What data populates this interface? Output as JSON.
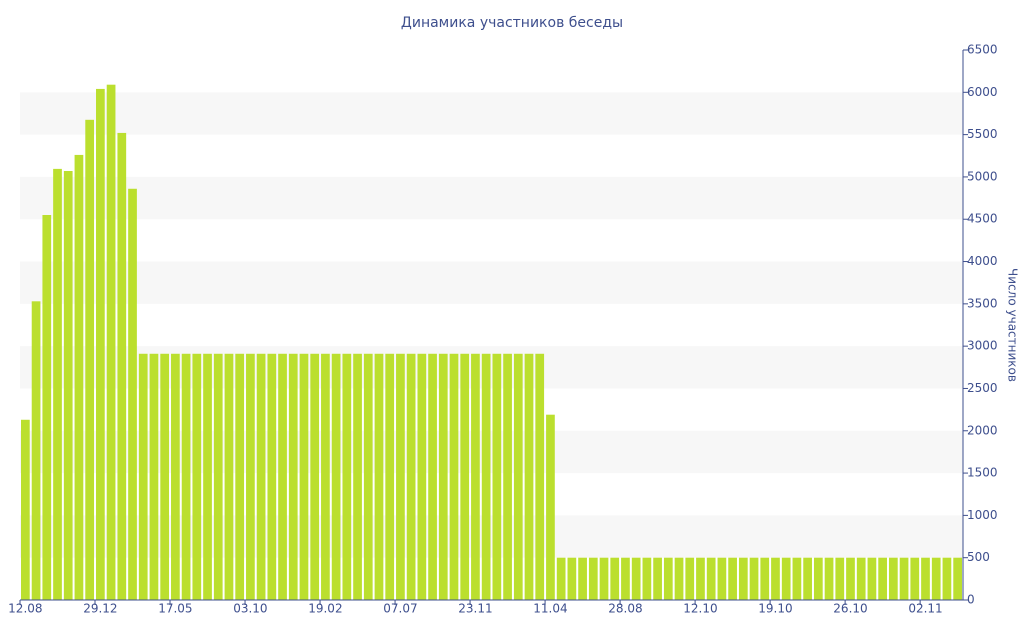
{
  "chart_data": {
    "type": "bar",
    "title": "Динамика участников беседы",
    "y_axis_label": "Число участников",
    "color": "#bbdf2e",
    "categories": [
      "12.08",
      null,
      null,
      null,
      null,
      null,
      null,
      "29.12",
      null,
      null,
      null,
      null,
      null,
      null,
      "17.05",
      null,
      null,
      null,
      null,
      null,
      null,
      "03.10",
      null,
      null,
      null,
      null,
      null,
      null,
      "19.02",
      null,
      null,
      null,
      null,
      null,
      null,
      "07.07",
      null,
      null,
      null,
      null,
      null,
      null,
      "23.11",
      null,
      null,
      null,
      null,
      null,
      null,
      "11.04",
      null,
      null,
      null,
      null,
      null,
      null,
      "28.08",
      null,
      null,
      null,
      null,
      null,
      null,
      "12.10",
      null,
      null,
      null,
      null,
      null,
      null,
      "19.10",
      null,
      null,
      null,
      null,
      null,
      null,
      "26.10",
      null,
      null,
      null,
      null,
      null,
      null,
      "02.11",
      null,
      null,
      null
    ],
    "values": [
      2130,
      3530,
      4550,
      5095,
      5070,
      5260,
      5675,
      6040,
      6090,
      5520,
      4860,
      2910,
      2910,
      2910,
      2910,
      2910,
      2910,
      2910,
      2910,
      2910,
      2910,
      2910,
      2910,
      2910,
      2910,
      2910,
      2910,
      2910,
      2910,
      2910,
      2910,
      2910,
      2910,
      2910,
      2910,
      2910,
      2910,
      2910,
      2910,
      2910,
      2910,
      2910,
      2910,
      2910,
      2910,
      2910,
      2910,
      2910,
      2910,
      2190,
      500,
      500,
      500,
      500,
      500,
      500,
      500,
      500,
      500,
      500,
      500,
      500,
      500,
      500,
      500,
      500,
      500,
      500,
      500,
      500,
      500,
      500,
      500,
      500,
      500,
      500,
      500,
      500,
      500,
      500,
      500,
      500,
      500,
      500,
      500,
      500,
      500,
      500
    ],
    "ylim": [
      0,
      6500
    ],
    "yticks": [
      0,
      500,
      1000,
      1500,
      2000,
      2500,
      3000,
      3500,
      4000,
      4500,
      5000,
      5500,
      6000,
      6500
    ],
    "bands": true
  }
}
